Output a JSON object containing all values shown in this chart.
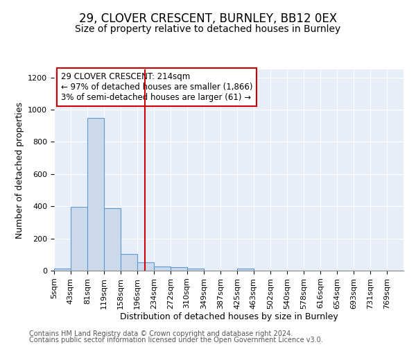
{
  "title1": "29, CLOVER CRESCENT, BURNLEY, BB12 0EX",
  "title2": "Size of property relative to detached houses in Burnley",
  "xlabel": "Distribution of detached houses by size in Burnley",
  "ylabel": "Number of detached properties",
  "footnote1": "Contains HM Land Registry data © Crown copyright and database right 2024.",
  "footnote2": "Contains public sector information licensed under the Open Government Licence v3.0.",
  "bin_labels": [
    "5sqm",
    "43sqm",
    "81sqm",
    "119sqm",
    "158sqm",
    "196sqm",
    "234sqm",
    "272sqm",
    "310sqm",
    "349sqm",
    "387sqm",
    "425sqm",
    "463sqm",
    "502sqm",
    "540sqm",
    "578sqm",
    "616sqm",
    "654sqm",
    "693sqm",
    "731sqm",
    "769sqm"
  ],
  "bar_values": [
    15,
    395,
    950,
    390,
    105,
    50,
    25,
    20,
    12,
    0,
    0,
    13,
    0,
    0,
    0,
    0,
    0,
    0,
    0,
    0,
    0
  ],
  "bar_color": "#ccd9ea",
  "bar_edge_color": "#5b9bd5",
  "property_line_x": 214,
  "property_line_color": "#cc0000",
  "bin_edges": [
    5,
    43,
    81,
    119,
    158,
    196,
    234,
    272,
    310,
    349,
    387,
    425,
    463,
    502,
    540,
    578,
    616,
    654,
    693,
    731,
    769,
    807
  ],
  "annotation_title": "29 CLOVER CRESCENT: 214sqm",
  "annotation_line1": "← 97% of detached houses are smaller (1,866)",
  "annotation_line2": "3% of semi-detached houses are larger (61) →",
  "annotation_box_color": "#ffffff",
  "annotation_border_color": "#cc0000",
  "ylim": [
    0,
    1250
  ],
  "yticks": [
    0,
    200,
    400,
    600,
    800,
    1000,
    1200
  ],
  "background_color": "#e8eef8",
  "title1_fontsize": 12,
  "title2_fontsize": 10,
  "axis_label_fontsize": 9,
  "tick_fontsize": 8,
  "footnote_fontsize": 7,
  "annotation_fontsize": 8.5
}
